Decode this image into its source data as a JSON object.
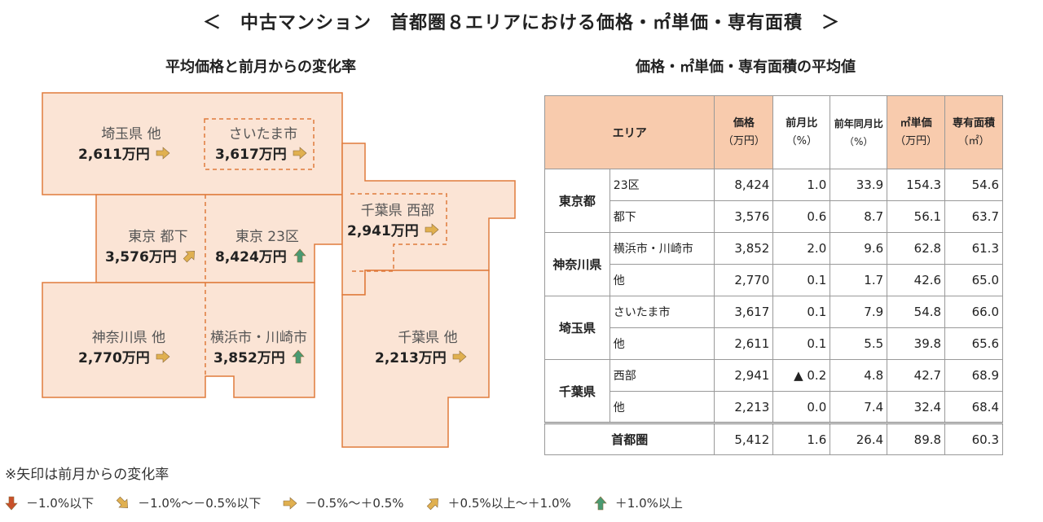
{
  "title": "＜　中古マンション　首都圏８エリアにおける価格・㎡単価・専有面積　＞",
  "left_subtitle": "平均価格と前月からの変化率",
  "right_subtitle": "価格・㎡単価・専有面積の平均値",
  "regions": {
    "saitama_other": {
      "label": "埼玉県 他",
      "price": "2,611万円",
      "arrow": "flat"
    },
    "saitama_city": {
      "label": "さいたま市",
      "price": "3,617万円",
      "arrow": "flat"
    },
    "tokyo_suburb": {
      "label": "東京 都下",
      "price": "3,576万円",
      "arrow": "up-slight"
    },
    "tokyo_23": {
      "label": "東京 23区",
      "price": "8,424万円",
      "arrow": "up"
    },
    "chiba_west": {
      "label": "千葉県 西部",
      "price": "2,941万円",
      "arrow": "flat"
    },
    "kanagawa_other": {
      "label": "神奈川県 他",
      "price": "2,770万円",
      "arrow": "flat"
    },
    "yokohama": {
      "label": "横浜市・川崎市",
      "price": "3,852万円",
      "arrow": "up"
    },
    "chiba_other": {
      "label": "千葉県 他",
      "price": "2,213万円",
      "arrow": "flat"
    }
  },
  "table": {
    "headers": {
      "area": "エリア",
      "price": "価格",
      "price_unit": "（万円）",
      "mom": "前月比",
      "mom_unit": "（%）",
      "yoy": "前年同月比",
      "yoy_unit": "（%）",
      "unit_price": "㎡単価",
      "unit_price_unit": "（万円）",
      "area_size": "専有面積",
      "area_size_unit": "（㎡）"
    },
    "groups": [
      {
        "pref": "東京都",
        "rows": [
          {
            "sub": "23区",
            "price": "8,424",
            "mom": "1.0",
            "yoy": "33.9",
            "unit": "154.3",
            "size": "54.6"
          },
          {
            "sub": "都下",
            "price": "3,576",
            "mom": "0.6",
            "yoy": "8.7",
            "unit": "56.1",
            "size": "63.7"
          }
        ]
      },
      {
        "pref": "神奈川県",
        "rows": [
          {
            "sub": "横浜市・川崎市",
            "price": "3,852",
            "mom": "2.0",
            "yoy": "9.6",
            "unit": "62.8",
            "size": "61.3"
          },
          {
            "sub": "他",
            "price": "2,770",
            "mom": "0.1",
            "yoy": "1.7",
            "unit": "42.6",
            "size": "65.0"
          }
        ]
      },
      {
        "pref": "埼玉県",
        "rows": [
          {
            "sub": "さいたま市",
            "price": "3,617",
            "mom": "0.1",
            "yoy": "7.9",
            "unit": "54.8",
            "size": "66.0"
          },
          {
            "sub": "他",
            "price": "2,611",
            "mom": "0.1",
            "yoy": "5.5",
            "unit": "39.8",
            "size": "65.6"
          }
        ]
      },
      {
        "pref": "千葉県",
        "rows": [
          {
            "sub": "西部",
            "price": "2,941",
            "mom": "▲ 0.2",
            "yoy": "4.8",
            "unit": "42.7",
            "size": "68.9"
          },
          {
            "sub": "他",
            "price": "2,213",
            "mom": "0.0",
            "yoy": "7.4",
            "unit": "32.4",
            "size": "68.4"
          }
        ]
      }
    ],
    "total": {
      "label": "首都圏",
      "price": "5,412",
      "mom": "1.6",
      "yoy": "26.4",
      "unit": "89.8",
      "size": "60.3"
    }
  },
  "note": "※矢印は前月からの変化率",
  "legend": [
    {
      "arrow": "down",
      "text": "－1.0%以下"
    },
    {
      "arrow": "down-slight",
      "text": "－1.0%～－0.5%以下"
    },
    {
      "arrow": "flat",
      "text": "－0.5%～＋0.5%"
    },
    {
      "arrow": "up-slight",
      "text": "＋0.5%以上～＋1.0%"
    },
    {
      "arrow": "up",
      "text": "＋1.0%以上"
    }
  ],
  "colors": {
    "region_fill": "#fbe4d5",
    "region_border": "#e07b3c",
    "header_fill": "#f8cbad",
    "arrow_flat": "#e0b050",
    "arrow_up": "#4a9a72",
    "arrow_down": "#c9502a"
  }
}
